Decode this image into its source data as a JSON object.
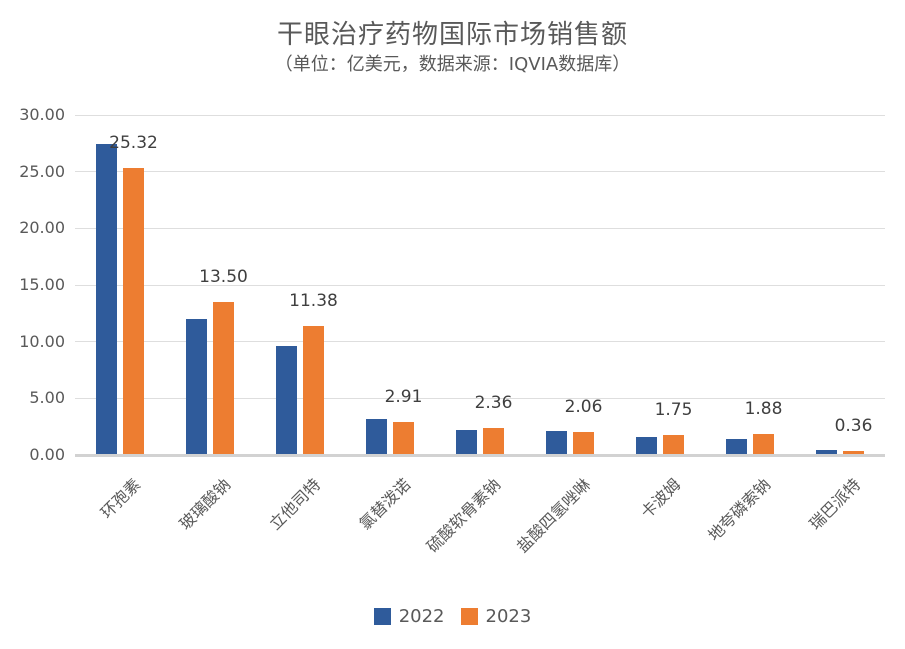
{
  "header": {
    "title": "干眼治疗药物国际市场销售额",
    "subtitle": "（单位：亿美元，数据来源：IQVIA数据库）"
  },
  "colors": {
    "series_2022": "#2F5B9B",
    "series_2023": "#ED7D31",
    "gridline": "#DEDEDE",
    "axis_line": "#D2D2D2",
    "title_text": "#595959",
    "data_label_text": "#3F3F3F"
  },
  "legend": {
    "items": [
      {
        "label": "2022",
        "color": "#2F5B9B"
      },
      {
        "label": "2023",
        "color": "#ED7D31"
      }
    ]
  },
  "chart_data": {
    "type": "bar",
    "title": "干眼治疗药物国际市场销售额",
    "subtitle": "（单位：亿美元，数据来源：IQVIA数据库）",
    "categories": [
      "环孢素",
      "玻璃酸钠",
      "立他司特",
      "氯替泼诺",
      "硫酸软骨素钠",
      "盐酸四氢唑啉",
      "卡波姆",
      "地夸磷索钠",
      "瑞巴派特"
    ],
    "series": [
      {
        "name": "2022",
        "color": "#2F5B9B",
        "estimated": true,
        "values": [
          27.45,
          12.0,
          9.65,
          3.15,
          2.25,
          2.1,
          1.6,
          1.4,
          0.4
        ]
      },
      {
        "name": "2023",
        "color": "#ED7D31",
        "estimated": false,
        "values": [
          25.32,
          13.5,
          11.38,
          2.91,
          2.36,
          2.06,
          1.75,
          1.88,
          0.36
        ]
      }
    ],
    "data_labels": {
      "series": "2023",
      "values": [
        "25.32",
        "13.50",
        "11.38",
        "2.91",
        "2.36",
        "2.06",
        "1.75",
        "1.88",
        "0.36"
      ]
    },
    "xlabel": "",
    "ylabel": "",
    "ylim": [
      0,
      30
    ],
    "ytick_step": 5,
    "ytick_labels": [
      "0.00",
      "5.00",
      "10.00",
      "15.00",
      "20.00",
      "25.00",
      "30.00"
    ],
    "grid": true,
    "legend_position": "bottom"
  }
}
